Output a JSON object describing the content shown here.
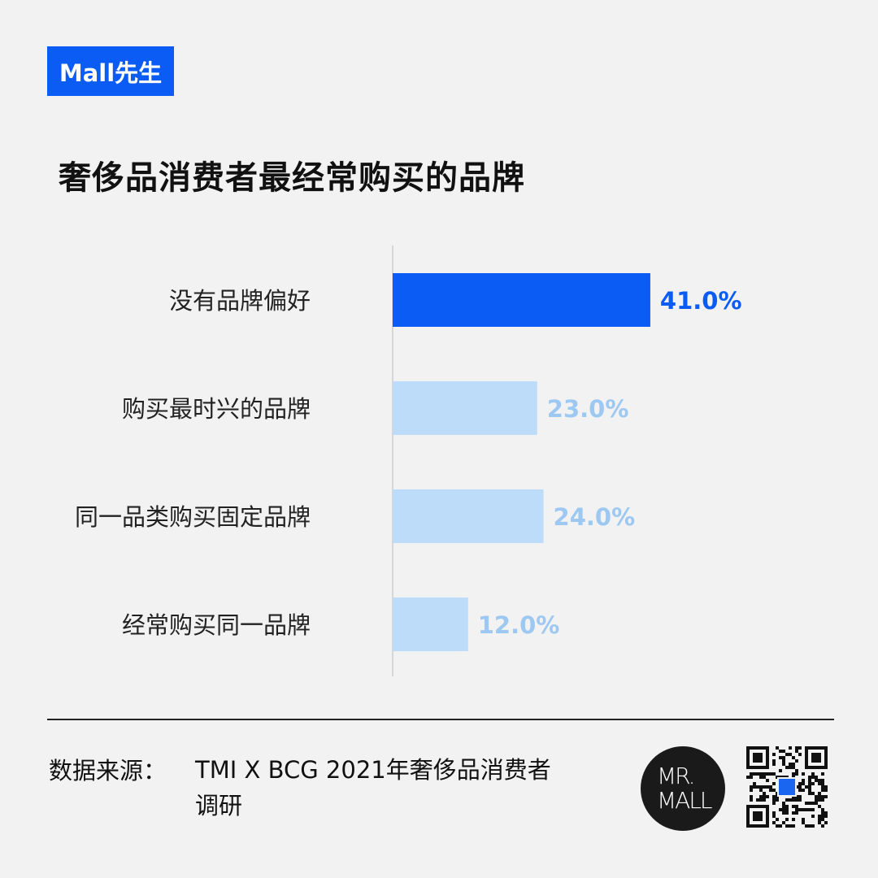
{
  "brand_tag": "Mall先生",
  "title": "奢侈品消费者最经常购买的品牌",
  "chart_data": {
    "type": "bar",
    "orientation": "horizontal",
    "categories": [
      "没有品牌偏好",
      "购买最时兴的品牌",
      "同一品类购买固定品牌",
      "经常购买同一品牌"
    ],
    "values": [
      41.0,
      23.0,
      24.0,
      12.0
    ],
    "value_labels": [
      "41.0%",
      "23.0%",
      "24.0%",
      "12.0%"
    ],
    "highlight_color": "#0a5cf5",
    "base_color": "#bcdcfa",
    "label_highlight_color": "#0a5cf5",
    "label_base_color": "#9cc8f2",
    "xlim": [
      0,
      100
    ]
  },
  "footer": {
    "source_label": "数据来源：",
    "source_text": "TMI X BCG 2021年奢侈品消费者调研",
    "logo_text": "MR. MALL"
  }
}
